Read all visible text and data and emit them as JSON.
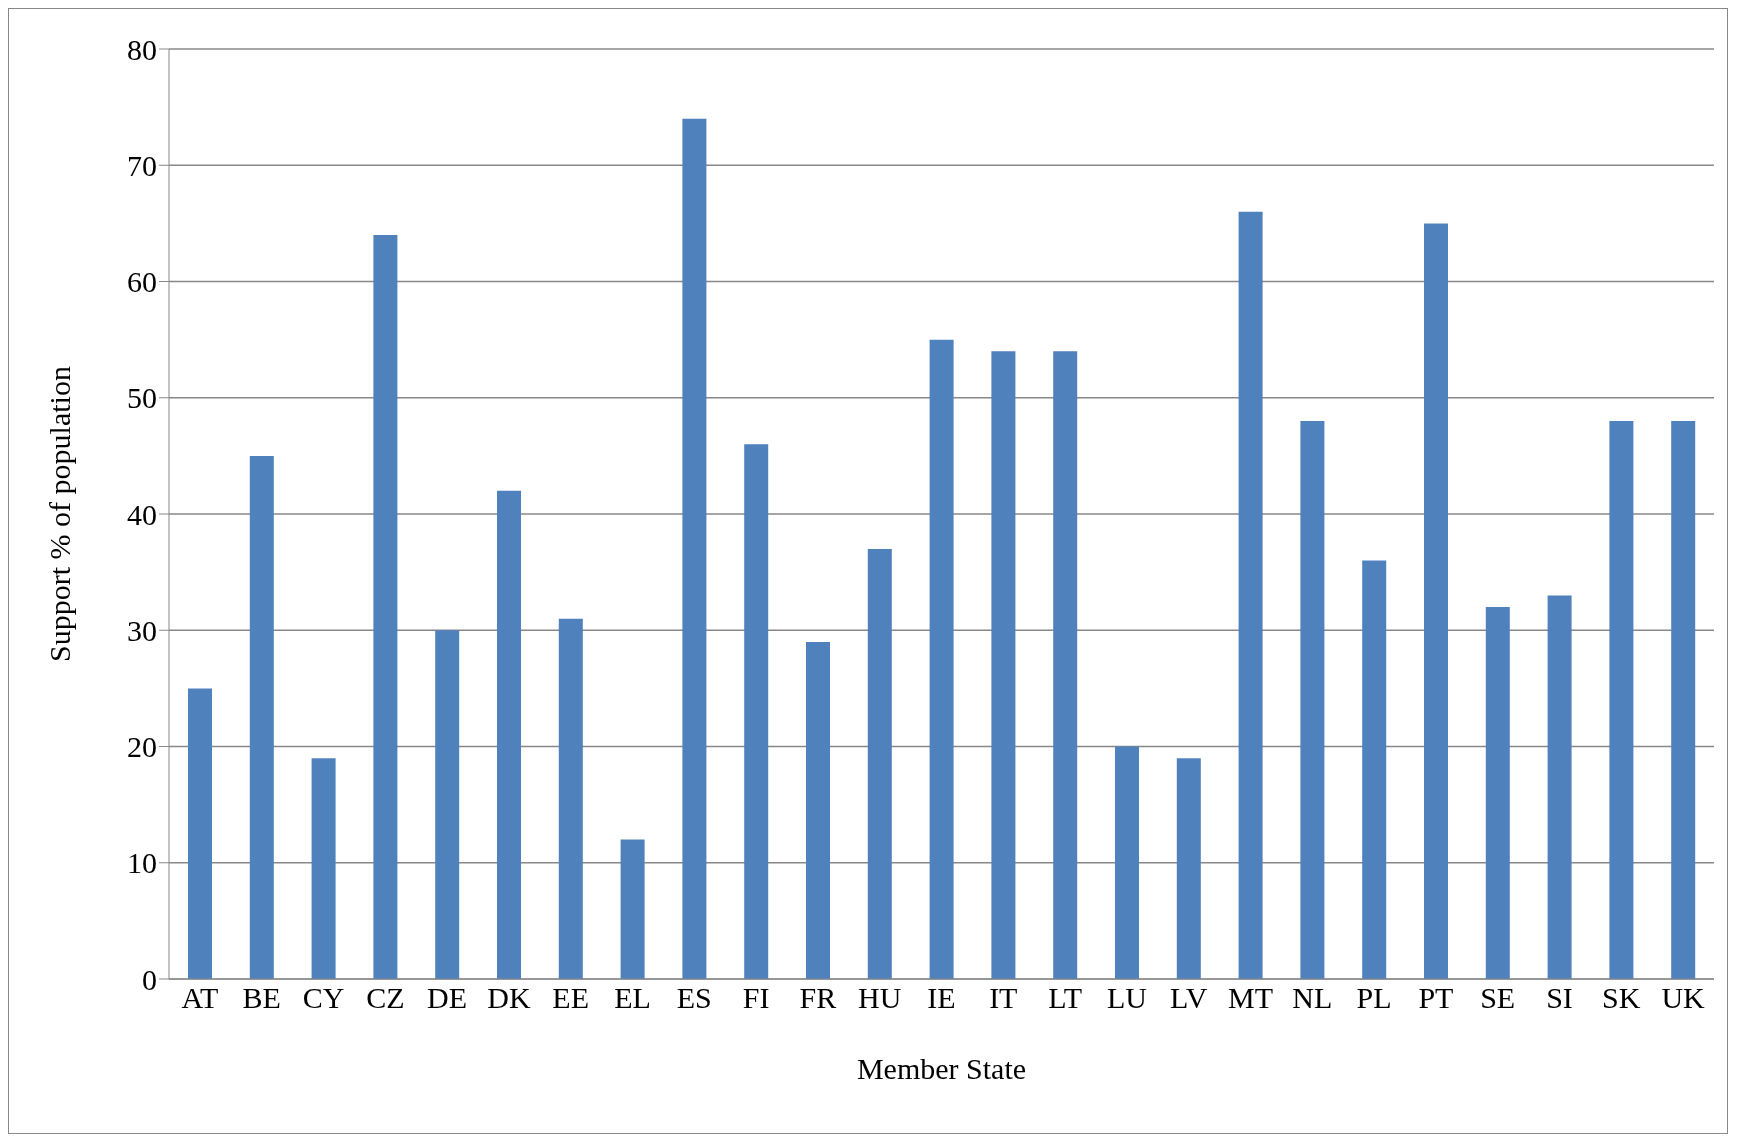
{
  "chart_data": {
    "type": "bar",
    "xlabel": "Member State",
    "ylabel": "Support % of population",
    "categories": [
      "AT",
      "BE",
      "CY",
      "CZ",
      "DE",
      "DK",
      "EE",
      "EL",
      "ES",
      "FI",
      "FR",
      "HU",
      "IE",
      "IT",
      "LT",
      "LU",
      "LV",
      "MT",
      "NL",
      "PL",
      "PT",
      "SE",
      "SI",
      "SK",
      "UK"
    ],
    "values": [
      25,
      45,
      19,
      64,
      30,
      42,
      31,
      12,
      74,
      46,
      29,
      37,
      55,
      54,
      54,
      20,
      19,
      66,
      48,
      36,
      65,
      32,
      33,
      48,
      48
    ],
    "color": "#4f81bd",
    "ylim": [
      0,
      80
    ],
    "yticks": [
      0,
      10,
      20,
      30,
      40,
      50,
      60,
      70,
      80
    ],
    "grid": "y",
    "legend": false
  }
}
